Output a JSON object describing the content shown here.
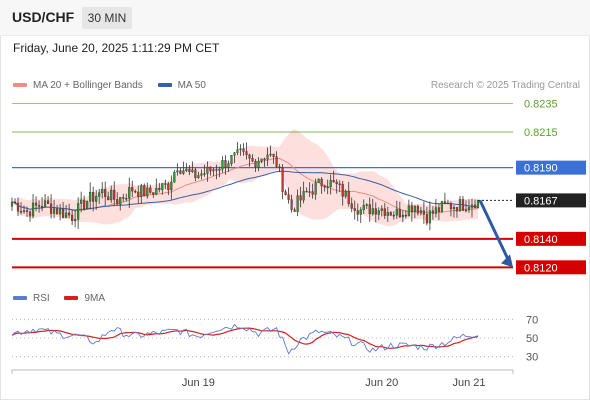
{
  "header": {
    "symbol": "USD/CHF",
    "timeframe": "30 MIN"
  },
  "datetime": "Friday, June 20, 2025 1:11:29 PM CET",
  "legend": {
    "items": [
      {
        "label": "MA 20 + Bollinger Bands",
        "color": "#f08c84"
      },
      {
        "label": "MA 50",
        "color": "#3a5ea8"
      }
    ],
    "credit": "Research © 2025 Trading Central"
  },
  "rsi_legend": {
    "items": [
      {
        "label": "RSI",
        "color": "#5b7bd5"
      },
      {
        "label": "9MA",
        "color": "#d42020"
      }
    ]
  },
  "chart_data": {
    "type": "candlestick",
    "x_ticks": [
      "Jun 19",
      "Jun 20",
      "Jun 21"
    ],
    "price_ylim": [
      0.8109,
      0.8241
    ],
    "last_price": {
      "value": 0.8167,
      "label": "0.8167"
    },
    "levels": [
      {
        "value": 0.8235,
        "label": "0.8235",
        "color": "#5aa02c",
        "style": "solid-thin",
        "kind": "resistance"
      },
      {
        "value": 0.8215,
        "label": "0.8215",
        "color": "#5aa02c",
        "style": "solid-thin",
        "kind": "resistance"
      },
      {
        "value": 0.819,
        "label": "0.8190",
        "color": "#3d6fd9",
        "style": "solid",
        "kind": "pivot"
      },
      {
        "value": 0.814,
        "label": "0.8140",
        "color": "#d40000",
        "style": "solid-thick",
        "kind": "support"
      },
      {
        "value": 0.812,
        "label": "0.8120",
        "color": "#d40000",
        "style": "solid-thick",
        "kind": "support"
      }
    ],
    "forecast_arrow": {
      "from": 0.8167,
      "to": 0.812,
      "color": "#2d5aa0"
    },
    "price_anchors": [
      [
        0,
        0.8166
      ],
      [
        5,
        0.8159
      ],
      [
        10,
        0.8165
      ],
      [
        15,
        0.816
      ],
      [
        20,
        0.8156
      ],
      [
        25,
        0.8167
      ],
      [
        30,
        0.8173
      ],
      [
        35,
        0.8167
      ],
      [
        40,
        0.8175
      ],
      [
        45,
        0.8172
      ],
      [
        52,
        0.8178
      ],
      [
        55,
        0.8192
      ],
      [
        60,
        0.8184
      ],
      [
        65,
        0.8187
      ],
      [
        72,
        0.8195
      ],
      [
        76,
        0.8199
      ],
      [
        80,
        0.8194
      ],
      [
        85,
        0.82
      ],
      [
        88,
        0.8193
      ],
      [
        90,
        0.8178
      ],
      [
        93,
        0.8161
      ],
      [
        98,
        0.8172
      ],
      [
        104,
        0.8181
      ],
      [
        108,
        0.8177
      ],
      [
        112,
        0.8168
      ],
      [
        116,
        0.816
      ],
      [
        122,
        0.8162
      ],
      [
        128,
        0.8158
      ],
      [
        134,
        0.8164
      ],
      [
        138,
        0.8156
      ],
      [
        144,
        0.8163
      ],
      [
        150,
        0.8164
      ],
      [
        155,
        0.8167
      ]
    ],
    "rsi": {
      "levels": [
        70,
        50,
        30
      ],
      "ylim": [
        20,
        80
      ],
      "rsi_anchors": [
        [
          0,
          55
        ],
        [
          8,
          60
        ],
        [
          15,
          54
        ],
        [
          22,
          52
        ],
        [
          28,
          45
        ],
        [
          33,
          60
        ],
        [
          40,
          52
        ],
        [
          48,
          55
        ],
        [
          55,
          58
        ],
        [
          62,
          52
        ],
        [
          68,
          60
        ],
        [
          76,
          64
        ],
        [
          82,
          55
        ],
        [
          88,
          60
        ],
        [
          92,
          35
        ],
        [
          96,
          48
        ],
        [
          102,
          57
        ],
        [
          108,
          52
        ],
        [
          114,
          45
        ],
        [
          120,
          37
        ],
        [
          126,
          42
        ],
        [
          132,
          42
        ],
        [
          138,
          40
        ],
        [
          144,
          45
        ],
        [
          150,
          52
        ],
        [
          155,
          55
        ]
      ]
    }
  }
}
